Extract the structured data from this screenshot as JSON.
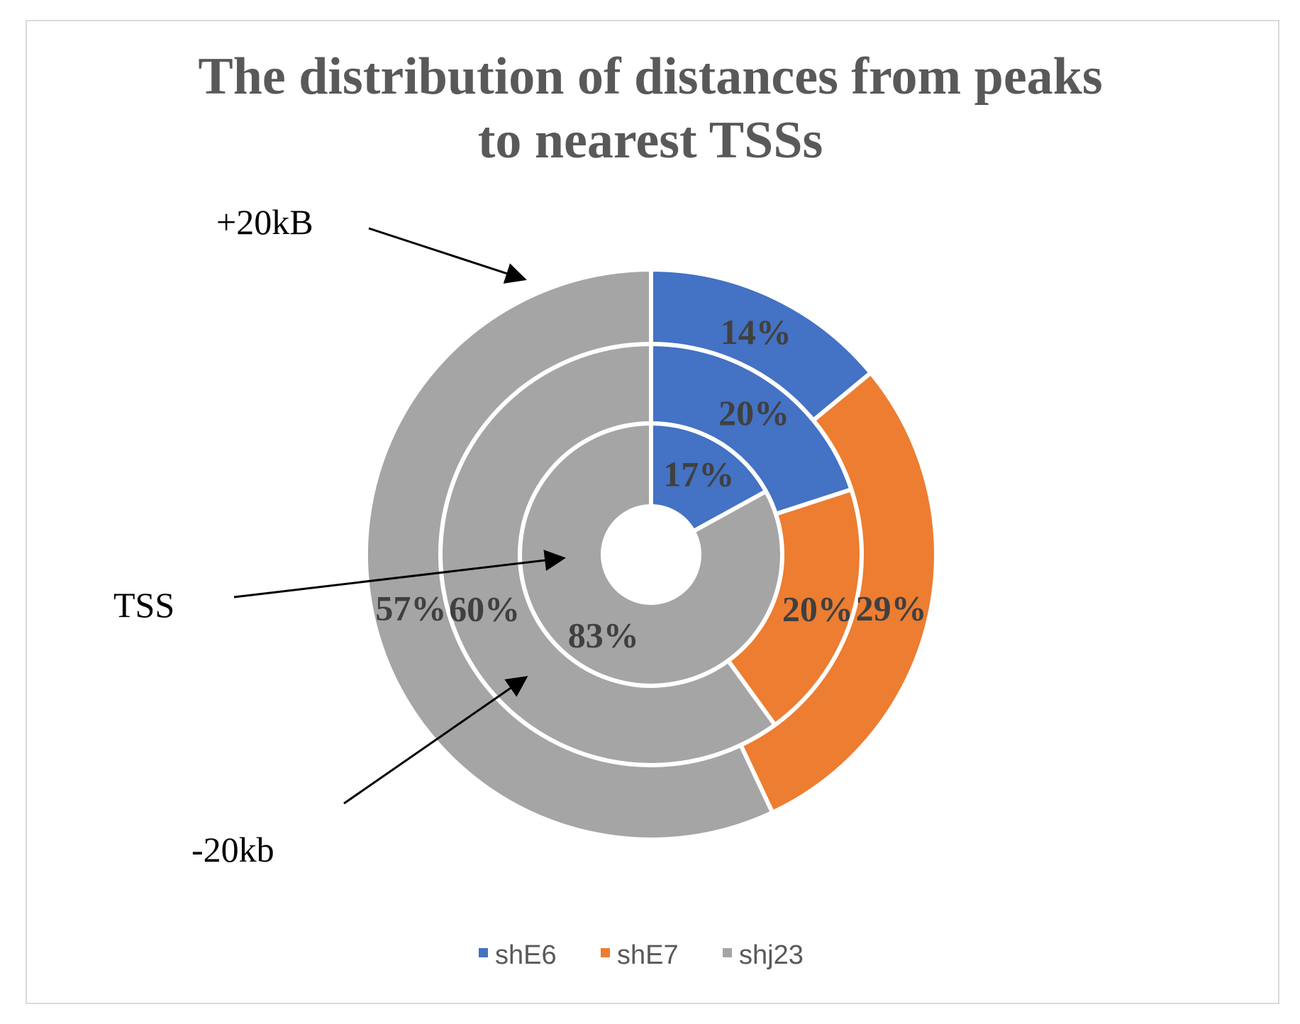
{
  "chart_data": {
    "type": "pie",
    "variant": "multi-ring doughnut",
    "title_lines": [
      "The distribution of distances from peaks",
      "to nearest TSSs"
    ],
    "categories": [
      "shE6",
      "shE7",
      "shj23"
    ],
    "colors": {
      "shE6": "#4472c4",
      "shE7": "#ed7d31",
      "shj23": "#a5a5a5"
    },
    "rings": [
      {
        "position": "inner",
        "values": [
          17,
          0,
          83
        ],
        "labels": [
          "17%",
          "",
          "83%"
        ]
      },
      {
        "position": "middle",
        "values": [
          20,
          20,
          60
        ],
        "labels": [
          "20%",
          "20%",
          "60%"
        ]
      },
      {
        "position": "outer",
        "values": [
          14,
          29,
          57
        ],
        "labels": [
          "14%",
          "29%",
          "57%"
        ]
      }
    ],
    "annotations": [
      {
        "text": "+20kB",
        "points_to": "outer"
      },
      {
        "text": "TSS",
        "points_to": "inner"
      },
      {
        "text": "-20kb",
        "points_to": "middle"
      }
    ],
    "legend": {
      "position": "bottom",
      "entries": [
        "shE6",
        "shE7",
        "shj23"
      ]
    }
  }
}
